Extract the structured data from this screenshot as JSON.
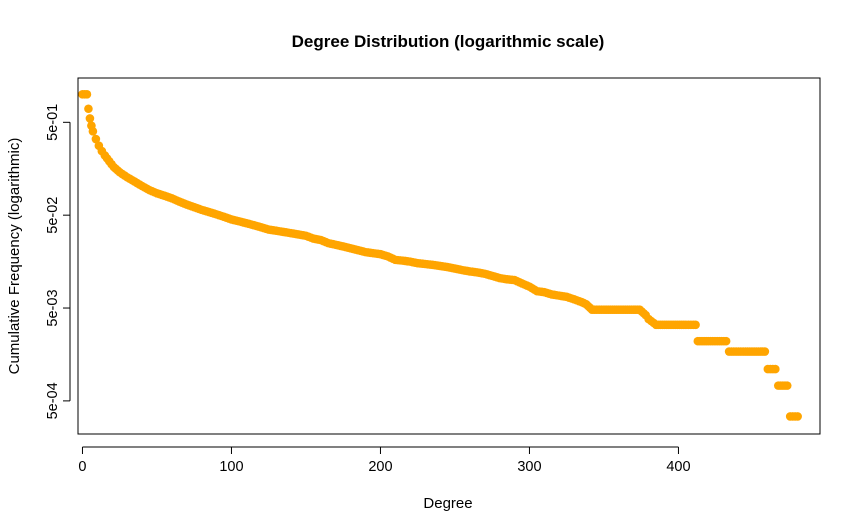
{
  "chart_data": {
    "type": "scatter",
    "title": "Degree Distribution (logarithmic scale)",
    "xlabel": "Degree",
    "ylabel": "Cumulative Frequency (logarithmic)",
    "y_scale": "log",
    "xlim": [
      -3,
      495
    ],
    "ylim": [
      0.00022,
      1.5
    ],
    "x_ticks": [
      0,
      100,
      200,
      300,
      400
    ],
    "x_tick_labels": [
      "0",
      "100",
      "200",
      "300",
      "400"
    ],
    "y_ticks": [
      0.0005,
      0.005,
      0.05,
      0.5
    ],
    "y_tick_labels": [
      "5e-04",
      "5e-03",
      "5e-02",
      "5e-01"
    ],
    "grid": false,
    "point_color": "#FFA500",
    "series": [
      {
        "points": [
          [
            0,
            1.0
          ],
          [
            3,
            1.0
          ],
          [
            4,
            0.7
          ],
          [
            5,
            0.55
          ],
          [
            6,
            0.46
          ],
          [
            7,
            0.4
          ],
          [
            9,
            0.33
          ],
          [
            11,
            0.28
          ],
          [
            13,
            0.245
          ],
          [
            15,
            0.22
          ],
          [
            18,
            0.19
          ],
          [
            21,
            0.165
          ],
          [
            25,
            0.145
          ],
          [
            30,
            0.128
          ],
          [
            35,
            0.115
          ],
          [
            40,
            0.103
          ],
          [
            45,
            0.093
          ],
          [
            50,
            0.086
          ],
          [
            55,
            0.081
          ],
          [
            60,
            0.076
          ],
          [
            65,
            0.07
          ],
          [
            70,
            0.065
          ],
          [
            75,
            0.061
          ],
          [
            80,
            0.057
          ],
          [
            85,
            0.054
          ],
          [
            90,
            0.051
          ],
          [
            95,
            0.048
          ],
          [
            100,
            0.045
          ],
          [
            105,
            0.043
          ],
          [
            110,
            0.041
          ],
          [
            115,
            0.039
          ],
          [
            120,
            0.037
          ],
          [
            125,
            0.035
          ],
          [
            130,
            0.034
          ],
          [
            135,
            0.033
          ],
          [
            140,
            0.032
          ],
          [
            145,
            0.031
          ],
          [
            150,
            0.03
          ],
          [
            155,
            0.028
          ],
          [
            160,
            0.027
          ],
          [
            165,
            0.025
          ],
          [
            170,
            0.024
          ],
          [
            175,
            0.023
          ],
          [
            180,
            0.022
          ],
          [
            185,
            0.021
          ],
          [
            190,
            0.02
          ],
          [
            195,
            0.0195
          ],
          [
            200,
            0.019
          ],
          [
            205,
            0.018
          ],
          [
            210,
            0.0165
          ],
          [
            215,
            0.0162
          ],
          [
            220,
            0.0158
          ],
          [
            225,
            0.0152
          ],
          [
            230,
            0.0149
          ],
          [
            235,
            0.0146
          ],
          [
            240,
            0.0142
          ],
          [
            245,
            0.0138
          ],
          [
            250,
            0.0133
          ],
          [
            255,
            0.0128
          ],
          [
            260,
            0.0124
          ],
          [
            265,
            0.0121
          ],
          [
            270,
            0.0117
          ],
          [
            275,
            0.0111
          ],
          [
            280,
            0.0105
          ],
          [
            285,
            0.0102
          ],
          [
            290,
            0.01
          ],
          [
            295,
            0.0092
          ],
          [
            300,
            0.0085
          ],
          [
            305,
            0.0076
          ],
          [
            310,
            0.0074
          ],
          [
            315,
            0.007
          ],
          [
            320,
            0.0068
          ],
          [
            325,
            0.0066
          ],
          [
            330,
            0.0062
          ],
          [
            335,
            0.0058
          ],
          [
            338,
            0.0055
          ],
          [
            342,
            0.0048
          ],
          [
            350,
            0.0048
          ],
          [
            360,
            0.0048
          ],
          [
            370,
            0.0048
          ],
          [
            374,
            0.0048
          ],
          [
            378,
            0.0042
          ],
          [
            380,
            0.0038
          ],
          [
            385,
            0.0033
          ],
          [
            395,
            0.0033
          ],
          [
            405,
            0.0033
          ],
          [
            410,
            0.0033
          ],
          [
            413,
            0.0022
          ],
          [
            420,
            0.0022
          ],
          [
            432,
            0.0022
          ],
          [
            434,
            0.0017
          ],
          [
            445,
            0.0017
          ],
          [
            458,
            0.0017
          ],
          [
            460,
            0.0011
          ],
          [
            465,
            0.0011
          ],
          [
            467,
            0.00073
          ],
          [
            473,
            0.00073
          ],
          [
            475,
            0.00034
          ],
          [
            480,
            0.00034
          ]
        ]
      }
    ]
  }
}
